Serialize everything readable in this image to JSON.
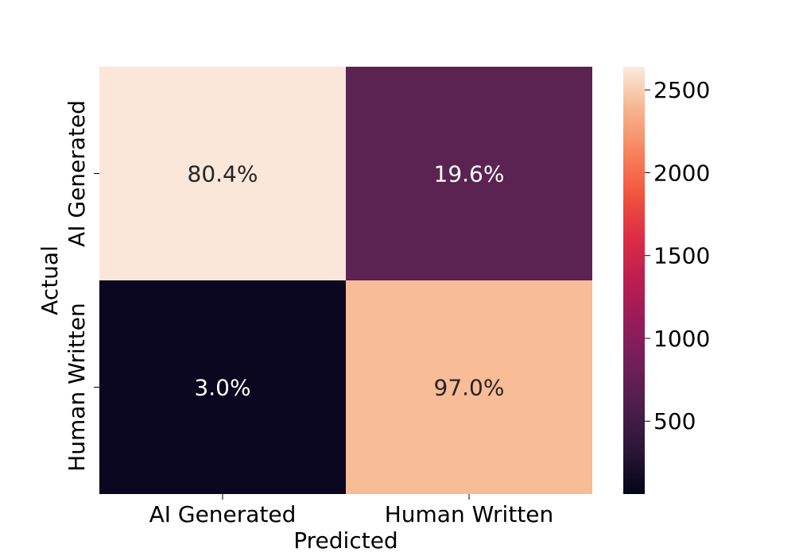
{
  "chart_data": {
    "type": "heatmap",
    "title": "",
    "xlabel": "Predicted",
    "ylabel": "Actual",
    "x_categories": [
      "AI Generated",
      "Human Written"
    ],
    "y_categories": [
      "AI Generated",
      "Human Written"
    ],
    "values": [
      [
        2640,
        645
      ],
      [
        80,
        2560
      ]
    ],
    "annotations": [
      [
        "80.4%",
        "19.6%"
      ],
      [
        "3.0%",
        "97.0%"
      ]
    ],
    "annotation_colors": [
      [
        "#262626",
        "#ffffff"
      ],
      [
        "#ffffff",
        "#262626"
      ]
    ],
    "colorbar": {
      "range": [
        60,
        2640
      ],
      "ticks": [
        500,
        1000,
        1500,
        2000,
        2500
      ],
      "tick_labels": [
        "500",
        "1000",
        "1500",
        "2000",
        "2500"
      ],
      "colormap": "rocket"
    },
    "colors": [
      "#fbe6da",
      "#5a2351",
      "#0b0720",
      "#f8bc96"
    ],
    "grid": false,
    "legend": "right"
  }
}
